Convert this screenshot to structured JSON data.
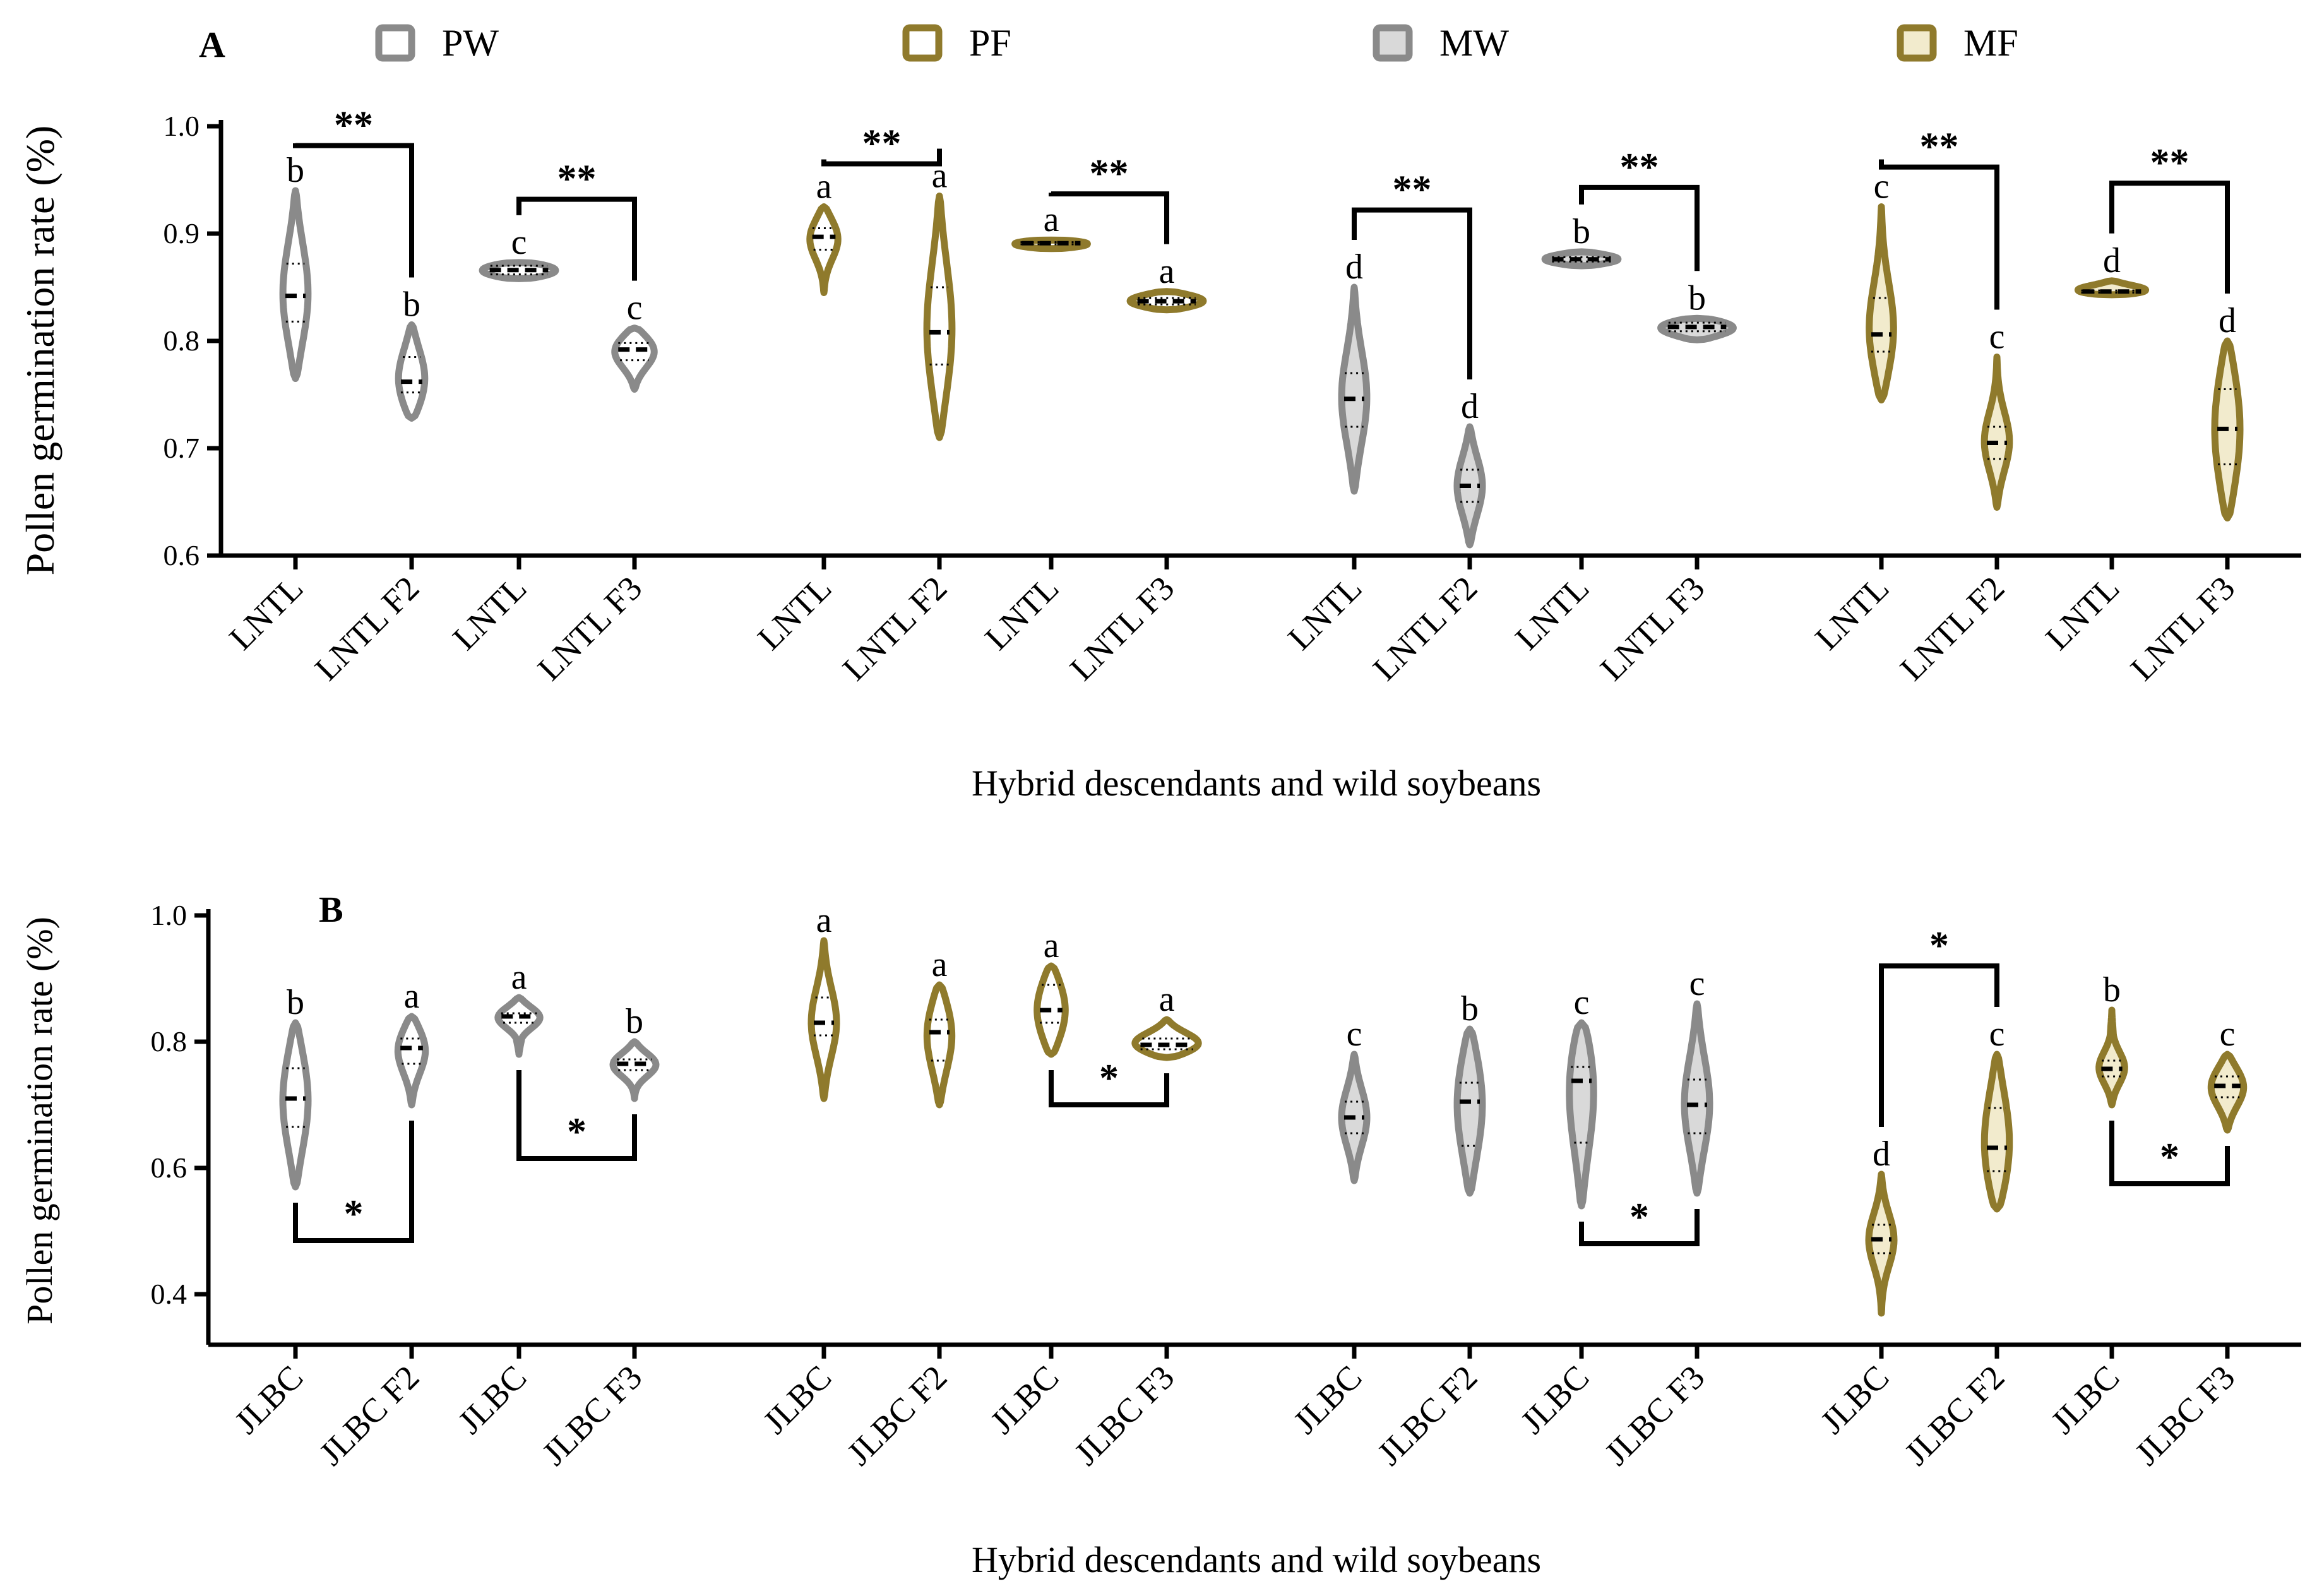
{
  "chart_data": [
    {
      "type": "violin",
      "panel_label": "A",
      "title": "",
      "xlabel": "Hybrid descendants and wild soybeans",
      "ylabel": "Pollen germination rate (%)",
      "ylim": [
        0.6,
        1.0
      ],
      "yticks": [
        "0.6",
        "0.7",
        "0.8",
        "0.9",
        "1.0"
      ],
      "legend": {
        "position": "top",
        "entries": [
          {
            "key": "PW",
            "label": "PW"
          },
          {
            "key": "PF",
            "label": "PF"
          },
          {
            "key": "MW",
            "label": "MW"
          },
          {
            "key": "MF",
            "label": "MF"
          }
        ]
      },
      "groups": [
        {
          "series": "PW",
          "category": "LNTL",
          "median": 0.842,
          "q1": 0.818,
          "q3": 0.872,
          "min": 0.765,
          "max": 0.94,
          "letter": "b"
        },
        {
          "series": "PW",
          "category": "LNTL F2",
          "median": 0.762,
          "q1": 0.752,
          "q3": 0.785,
          "min": 0.728,
          "max": 0.815,
          "letter": "b"
        },
        {
          "series": "PW",
          "category": "LNTL",
          "median": 0.866,
          "q1": 0.862,
          "q3": 0.87,
          "min": 0.858,
          "max": 0.873,
          "letter": "c"
        },
        {
          "series": "PW",
          "category": "LNTL F3",
          "median": 0.792,
          "q1": 0.782,
          "q3": 0.798,
          "min": 0.755,
          "max": 0.812,
          "letter": "c"
        },
        {
          "series": "PF",
          "category": "LNTL",
          "median": 0.897,
          "q1": 0.885,
          "q3": 0.905,
          "min": 0.845,
          "max": 0.925,
          "letter": "a"
        },
        {
          "series": "PF",
          "category": "LNTL F2",
          "median": 0.808,
          "q1": 0.778,
          "q3": 0.85,
          "min": 0.71,
          "max": 0.935,
          "letter": "a"
        },
        {
          "series": "PF",
          "category": "LNTL",
          "median": 0.891,
          "q1": 0.89,
          "q3": 0.892,
          "min": 0.886,
          "max": 0.894,
          "letter": "a"
        },
        {
          "series": "PF",
          "category": "LNTL F3",
          "median": 0.837,
          "q1": 0.834,
          "q3": 0.84,
          "min": 0.829,
          "max": 0.846,
          "letter": "a"
        },
        {
          "series": "MW",
          "category": "LNTL",
          "median": 0.746,
          "q1": 0.72,
          "q3": 0.77,
          "min": 0.66,
          "max": 0.85,
          "letter": "d"
        },
        {
          "series": "MW",
          "category": "LNTL F2",
          "median": 0.665,
          "q1": 0.65,
          "q3": 0.68,
          "min": 0.61,
          "max": 0.72,
          "letter": "d"
        },
        {
          "series": "MW",
          "category": "LNTL",
          "median": 0.876,
          "q1": 0.874,
          "q3": 0.878,
          "min": 0.87,
          "max": 0.883,
          "letter": "b"
        },
        {
          "series": "MW",
          "category": "LNTL F3",
          "median": 0.813,
          "q1": 0.809,
          "q3": 0.817,
          "min": 0.801,
          "max": 0.821,
          "letter": "b"
        },
        {
          "series": "MF",
          "category": "LNTL",
          "median": 0.806,
          "q1": 0.79,
          "q3": 0.84,
          "min": 0.745,
          "max": 0.925,
          "letter": "c"
        },
        {
          "series": "MF",
          "category": "LNTL F2",
          "median": 0.705,
          "q1": 0.69,
          "q3": 0.72,
          "min": 0.645,
          "max": 0.785,
          "letter": "c"
        },
        {
          "series": "MF",
          "category": "LNTL",
          "median": 0.846,
          "q1": 0.845,
          "q3": 0.847,
          "min": 0.843,
          "max": 0.856,
          "letter": "d"
        },
        {
          "series": "MF",
          "category": "LNTL F3",
          "median": 0.718,
          "q1": 0.685,
          "q3": 0.755,
          "min": 0.635,
          "max": 0.8,
          "letter": "d"
        }
      ],
      "comparisons": [
        {
          "between": [
            0,
            1
          ],
          "label": "**",
          "direction": "up",
          "level": 0.982
        },
        {
          "between": [
            2,
            3
          ],
          "label": "**",
          "direction": "up",
          "level": 0.932
        },
        {
          "between": [
            4,
            5
          ],
          "label": "**",
          "direction": "up",
          "level": 0.965
        },
        {
          "between": [
            6,
            7
          ],
          "label": "**",
          "direction": "up",
          "level": 0.937
        },
        {
          "between": [
            8,
            9
          ],
          "label": "**",
          "direction": "up",
          "level": 0.922
        },
        {
          "between": [
            10,
            11
          ],
          "label": "**",
          "direction": "up",
          "level": 0.943
        },
        {
          "between": [
            12,
            13
          ],
          "label": "**",
          "direction": "up",
          "level": 0.962
        },
        {
          "between": [
            14,
            15
          ],
          "label": "**",
          "direction": "up",
          "level": 0.947
        }
      ]
    },
    {
      "type": "violin",
      "panel_label": "B",
      "title": "",
      "xlabel": "Hybrid descendants and wild soybeans",
      "ylabel": "Pollen germination rate (%)",
      "ylim": [
        0.32,
        1.0
      ],
      "yticks": [
        "0.4",
        "0.6",
        "0.8",
        "1.0"
      ],
      "groups": [
        {
          "series": "PW",
          "category": "JLBC",
          "median": 0.71,
          "q1": 0.665,
          "q3": 0.758,
          "min": 0.57,
          "max": 0.83,
          "letter": "b"
        },
        {
          "series": "PW",
          "category": "JLBC F2",
          "median": 0.79,
          "q1": 0.765,
          "q3": 0.805,
          "min": 0.7,
          "max": 0.84,
          "letter": "a"
        },
        {
          "series": "PW",
          "category": "JLBC",
          "median": 0.84,
          "q1": 0.83,
          "q3": 0.845,
          "min": 0.78,
          "max": 0.87,
          "letter": "a"
        },
        {
          "series": "PW",
          "category": "JLBC F3",
          "median": 0.765,
          "q1": 0.755,
          "q3": 0.772,
          "min": 0.71,
          "max": 0.8,
          "letter": "b"
        },
        {
          "series": "PF",
          "category": "JLBC",
          "median": 0.83,
          "q1": 0.81,
          "q3": 0.87,
          "min": 0.71,
          "max": 0.96,
          "letter": "a"
        },
        {
          "series": "PF",
          "category": "JLBC F2",
          "median": 0.815,
          "q1": 0.77,
          "q3": 0.835,
          "min": 0.7,
          "max": 0.89,
          "letter": "a"
        },
        {
          "series": "PF",
          "category": "JLBC",
          "median": 0.85,
          "q1": 0.83,
          "q3": 0.89,
          "min": 0.78,
          "max": 0.92,
          "letter": "a"
        },
        {
          "series": "PF",
          "category": "JLBC F3",
          "median": 0.795,
          "q1": 0.788,
          "q3": 0.805,
          "min": 0.775,
          "max": 0.835,
          "letter": "a"
        },
        {
          "series": "MW",
          "category": "JLBC",
          "median": 0.68,
          "q1": 0.655,
          "q3": 0.705,
          "min": 0.58,
          "max": 0.78,
          "letter": "c"
        },
        {
          "series": "MW",
          "category": "JLBC F2",
          "median": 0.705,
          "q1": 0.635,
          "q3": 0.735,
          "min": 0.56,
          "max": 0.82,
          "letter": "b"
        },
        {
          "series": "MW",
          "category": "JLBC",
          "median": 0.738,
          "q1": 0.64,
          "q3": 0.76,
          "min": 0.54,
          "max": 0.83,
          "letter": "c"
        },
        {
          "series": "MW",
          "category": "JLBC F3",
          "median": 0.7,
          "q1": 0.655,
          "q3": 0.74,
          "min": 0.56,
          "max": 0.86,
          "letter": "c"
        },
        {
          "series": "MF",
          "category": "JLBC",
          "median": 0.487,
          "q1": 0.465,
          "q3": 0.51,
          "min": 0.37,
          "max": 0.59,
          "letter": "d"
        },
        {
          "series": "MF",
          "category": "JLBC F2",
          "median": 0.632,
          "q1": 0.595,
          "q3": 0.695,
          "min": 0.535,
          "max": 0.78,
          "letter": "c"
        },
        {
          "series": "MF",
          "category": "JLBC",
          "median": 0.757,
          "q1": 0.745,
          "q3": 0.77,
          "min": 0.7,
          "max": 0.85,
          "letter": "b"
        },
        {
          "series": "MF",
          "category": "JLBC F3",
          "median": 0.73,
          "q1": 0.712,
          "q3": 0.745,
          "min": 0.66,
          "max": 0.78,
          "letter": "c"
        }
      ],
      "comparisons": [
        {
          "between": [
            0,
            1
          ],
          "label": "*",
          "direction": "down",
          "level": 0.485
        },
        {
          "between": [
            2,
            3
          ],
          "label": "*",
          "direction": "down",
          "level": 0.615
        },
        {
          "between": [
            6,
            7
          ],
          "label": "*",
          "direction": "down",
          "level": 0.7
        },
        {
          "between": [
            10,
            11
          ],
          "label": "*",
          "direction": "down",
          "level": 0.48
        },
        {
          "between": [
            12,
            13
          ],
          "label": "*",
          "direction": "up",
          "level": 0.92
        },
        {
          "between": [
            14,
            15
          ],
          "label": "*",
          "direction": "down",
          "level": 0.575
        }
      ]
    }
  ],
  "colors": {
    "PW": {
      "stroke": "#8a8a8a",
      "fill": "#ffffff"
    },
    "PF": {
      "stroke": "#8f7a2c",
      "fill": "#ffffff"
    },
    "MW": {
      "stroke": "#8a8a8a",
      "fill": "#d9d9d9"
    },
    "MF": {
      "stroke": "#8f7a2c",
      "fill": "#f2ebcd"
    }
  }
}
